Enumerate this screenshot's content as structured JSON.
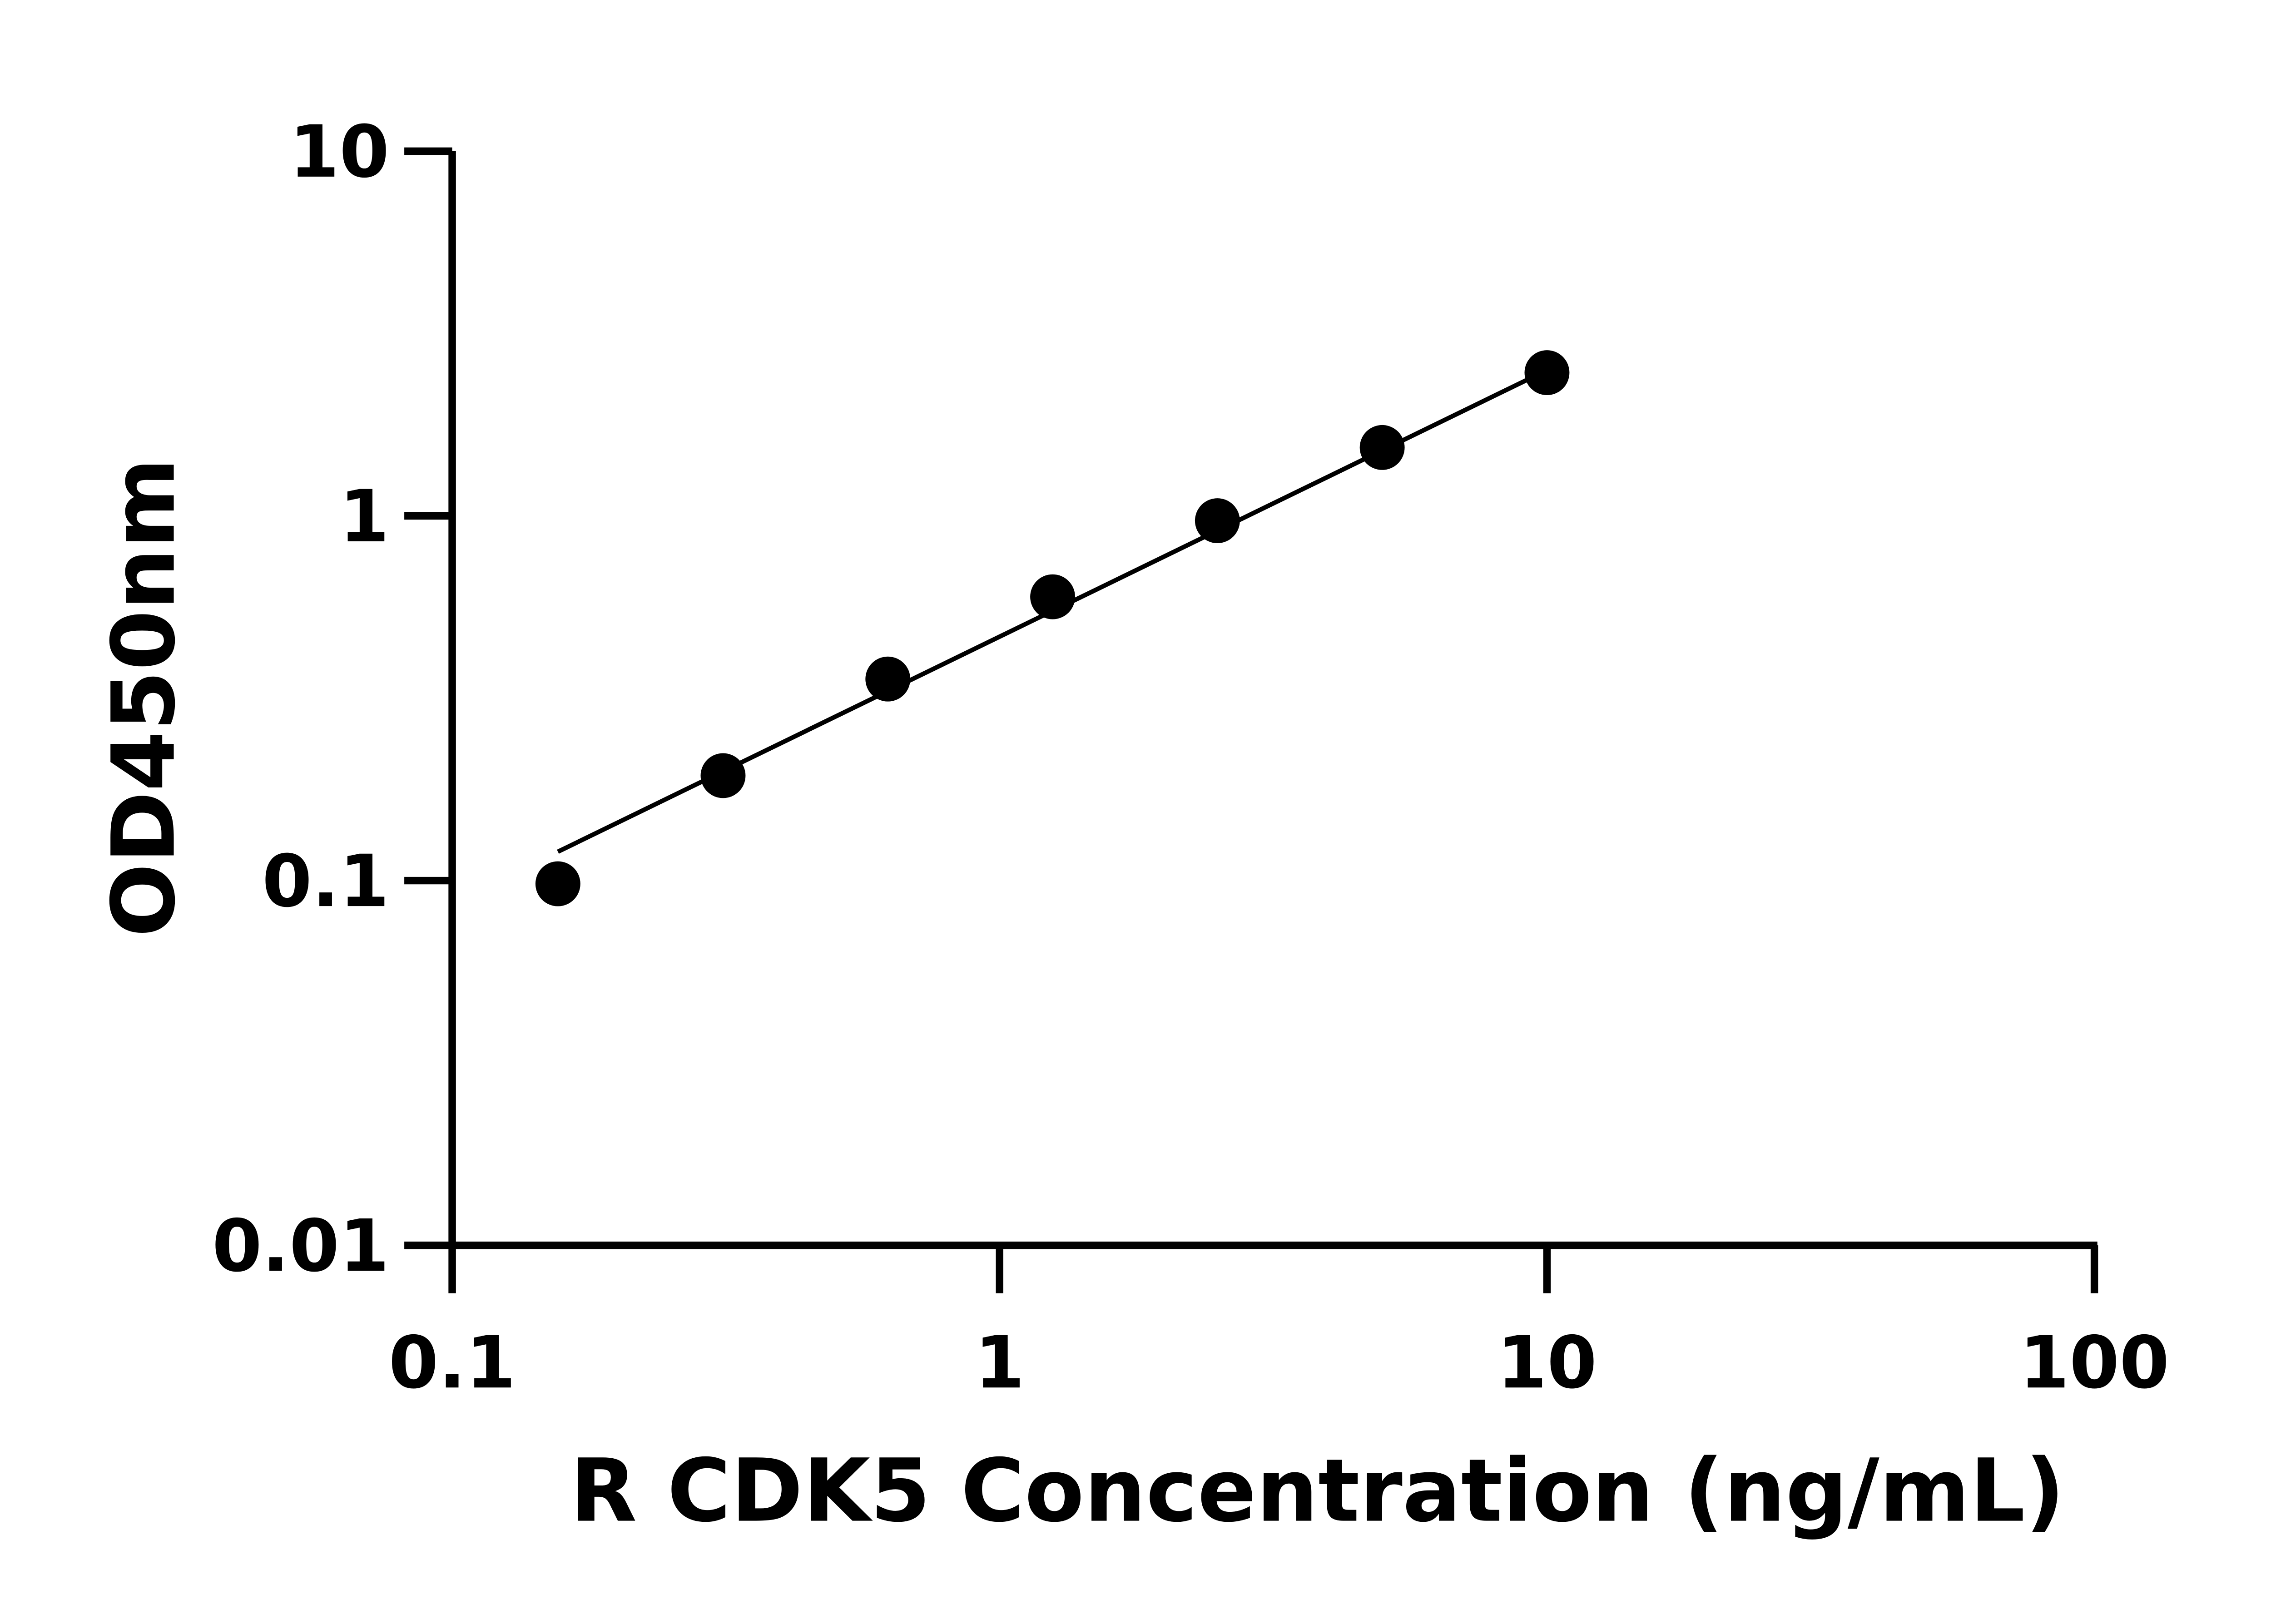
{
  "chart_data": {
    "type": "scatter",
    "title": "",
    "xlabel": "R CDK5 Concentration (ng/mL)",
    "ylabel": "OD450nm",
    "x_scale": "log",
    "y_scale": "log",
    "xlim": [
      0.1,
      100
    ],
    "ylim": [
      0.01,
      10
    ],
    "x_ticks": [
      0.1,
      1,
      10,
      100
    ],
    "x_tick_labels": [
      "0.1",
      "1",
      "10",
      "100"
    ],
    "y_ticks": [
      0.01,
      0.1,
      1,
      10
    ],
    "y_tick_labels": [
      "0.01",
      "0.1",
      "1",
      "10"
    ],
    "grid": false,
    "legend": "none",
    "series": [
      {
        "x": [
          0.156,
          0.3125,
          0.625,
          1.25,
          2.5,
          5,
          10
        ],
        "y": [
          0.098,
          0.194,
          0.357,
          0.6,
          0.97,
          1.54,
          2.47
        ],
        "color": "#000000",
        "marker": "circle"
      }
    ],
    "fit_line": {
      "x": [
        0.156,
        9.3
      ],
      "y": [
        0.12,
        2.38
      ],
      "color": "#000000"
    }
  }
}
